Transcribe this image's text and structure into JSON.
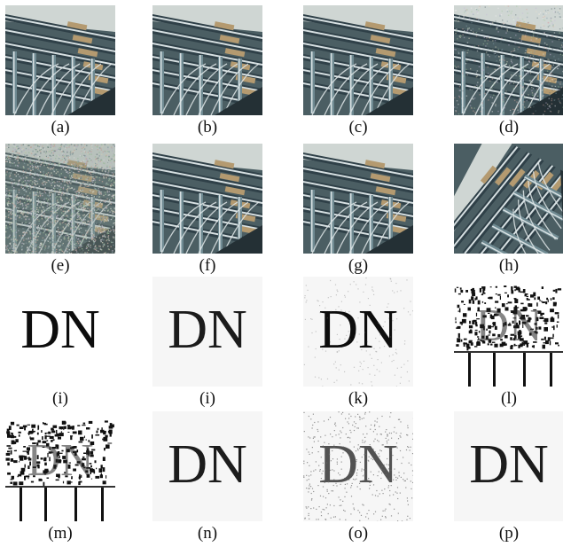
{
  "figure": {
    "captions": [
      "(a)",
      "(b)",
      "(c)",
      "(d)",
      "(e)",
      "(f)",
      "(g)",
      "(h)",
      "(i)",
      "(i)",
      "(k)",
      "(l)",
      "(m)",
      "(n)",
      "(o)",
      "(p)"
    ],
    "dn_text": "DN"
  },
  "panels": [
    {
      "kind": "machine",
      "variant": "clean"
    },
    {
      "kind": "machine",
      "variant": "clean"
    },
    {
      "kind": "machine",
      "variant": "clean"
    },
    {
      "kind": "machine",
      "variant": "light-noise"
    },
    {
      "kind": "machine",
      "variant": "heavy-noise"
    },
    {
      "kind": "machine",
      "variant": "clean"
    },
    {
      "kind": "machine",
      "variant": "clean"
    },
    {
      "kind": "machine",
      "variant": "rotated"
    },
    {
      "kind": "text",
      "variant": "clean"
    },
    {
      "kind": "text",
      "variant": "soft"
    },
    {
      "kind": "text",
      "variant": "speckled"
    },
    {
      "kind": "text",
      "variant": "scrambled"
    },
    {
      "kind": "text",
      "variant": "scrambled"
    },
    {
      "kind": "text",
      "variant": "soft"
    },
    {
      "kind": "text",
      "variant": "noisy"
    },
    {
      "kind": "text",
      "variant": "soft"
    }
  ],
  "colors": {
    "machine_dark": "#2f4048",
    "machine_mid": "#6f8a92",
    "machine_light": "#d7e0e2",
    "tube": "#b49a70"
  }
}
